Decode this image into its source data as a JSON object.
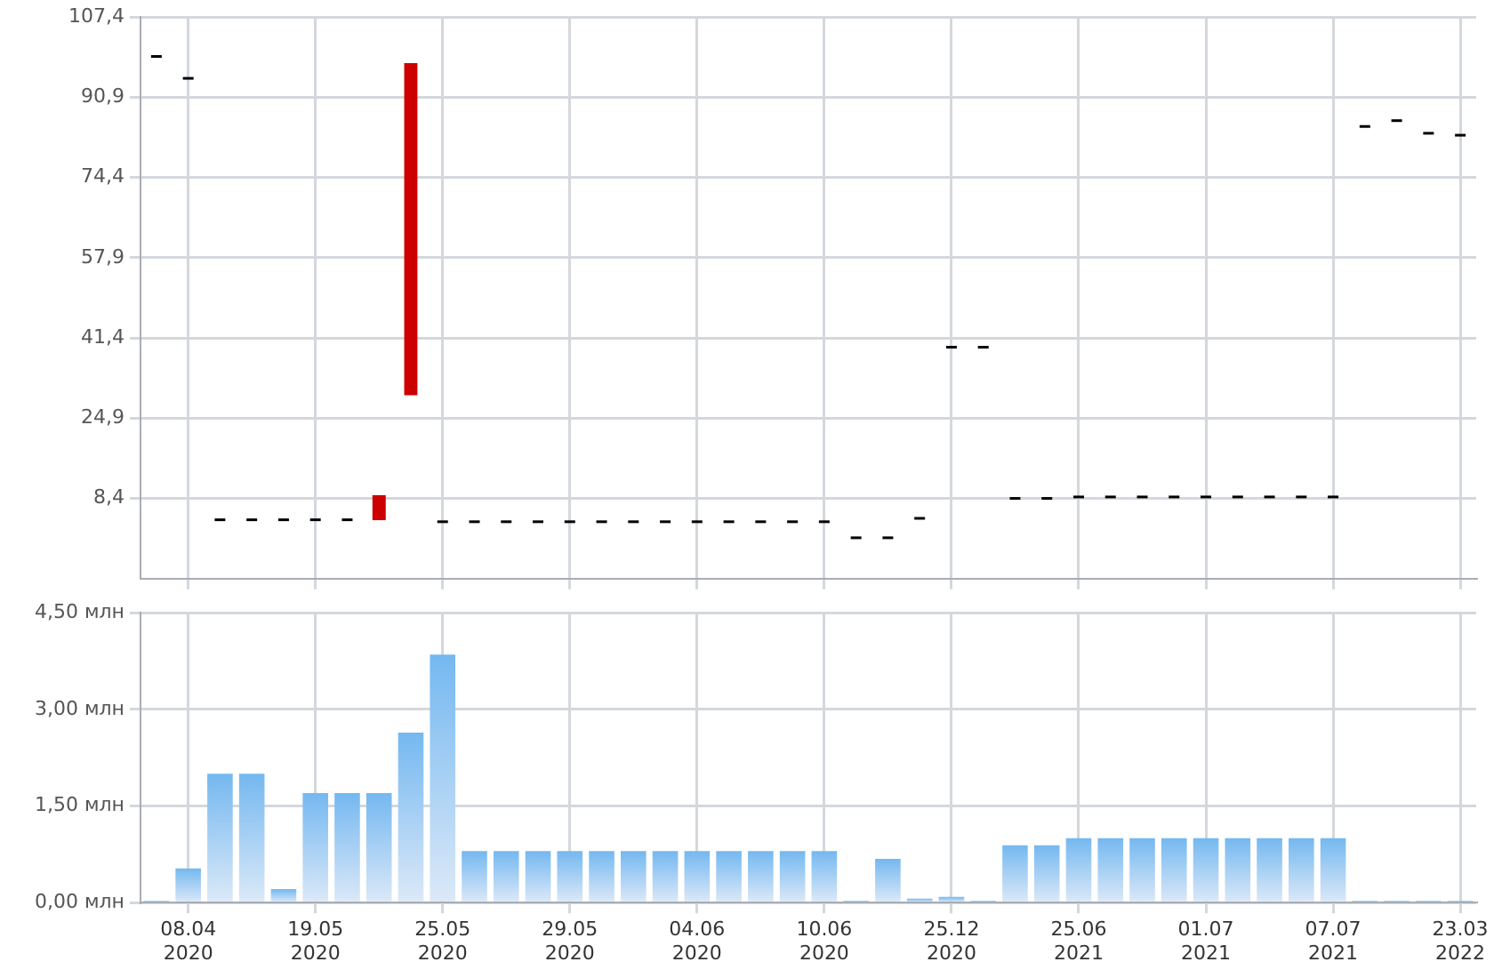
{
  "chart_data": [
    {
      "type": "candlestick",
      "categories": [
        null,
        null,
        null,
        null,
        null,
        null,
        null,
        null,
        null,
        null,
        null,
        null,
        null,
        null,
        null,
        null,
        null,
        null,
        null,
        null,
        null,
        null,
        null,
        null,
        null,
        null,
        null,
        null,
        null,
        null,
        null,
        null,
        null,
        null,
        null,
        null,
        null,
        null,
        null,
        null,
        null,
        null
      ],
      "ohlc": [
        [
          99.3,
          99.3,
          99.3,
          99.3
        ],
        [
          94.8,
          94.8,
          94.8,
          94.8
        ],
        [
          4.0,
          4.0,
          4.0,
          4.0
        ],
        [
          4.0,
          4.0,
          4.0,
          4.0
        ],
        [
          4.0,
          4.0,
          4.0,
          4.0
        ],
        [
          4.0,
          4.0,
          4.0,
          4.0
        ],
        [
          4.0,
          4.0,
          4.0,
          4.0
        ],
        [
          9.0,
          9.0,
          4.0,
          4.0
        ],
        [
          97.8,
          97.8,
          29.7,
          29.7
        ],
        [
          3.6,
          3.6,
          3.6,
          3.6
        ],
        [
          3.6,
          3.6,
          3.6,
          3.6
        ],
        [
          3.6,
          3.6,
          3.6,
          3.6
        ],
        [
          3.6,
          3.6,
          3.6,
          3.6
        ],
        [
          3.6,
          3.6,
          3.6,
          3.6
        ],
        [
          3.6,
          3.6,
          3.6,
          3.6
        ],
        [
          3.6,
          3.6,
          3.6,
          3.6
        ],
        [
          3.6,
          3.6,
          3.6,
          3.6
        ],
        [
          3.6,
          3.6,
          3.6,
          3.6
        ],
        [
          3.6,
          3.6,
          3.6,
          3.6
        ],
        [
          3.6,
          3.6,
          3.6,
          3.6
        ],
        [
          3.6,
          3.6,
          3.6,
          3.6
        ],
        [
          3.6,
          3.6,
          3.6,
          3.6
        ],
        [
          0.3,
          0.3,
          0.3,
          0.3
        ],
        [
          0.3,
          0.3,
          0.3,
          0.3
        ],
        [
          4.3,
          4.3,
          4.3,
          4.3
        ],
        [
          39.5,
          39.5,
          39.5,
          39.5
        ],
        [
          39.5,
          39.5,
          39.5,
          39.5
        ],
        [
          8.4,
          8.4,
          8.4,
          8.4
        ],
        [
          8.4,
          8.4,
          8.4,
          8.4
        ],
        [
          8.7,
          8.7,
          8.7,
          8.7
        ],
        [
          8.7,
          8.7,
          8.7,
          8.7
        ],
        [
          8.7,
          8.7,
          8.7,
          8.7
        ],
        [
          8.7,
          8.7,
          8.7,
          8.7
        ],
        [
          8.7,
          8.7,
          8.7,
          8.7
        ],
        [
          8.7,
          8.7,
          8.7,
          8.7
        ],
        [
          8.7,
          8.7,
          8.7,
          8.7
        ],
        [
          8.7,
          8.7,
          8.7,
          8.7
        ],
        [
          8.7,
          8.7,
          8.7,
          8.7
        ],
        [
          84.9,
          84.9,
          84.9,
          84.9
        ],
        [
          86.1,
          86.1,
          86.1,
          86.1
        ],
        [
          83.5,
          83.5,
          83.5,
          83.5
        ],
        [
          83.1,
          83.1,
          83.1,
          83.1
        ]
      ],
      "colors": [
        "#000000",
        "#000000",
        "#000000",
        "#000000",
        "#000000",
        "#000000",
        "#000000",
        "#cc0000",
        "#cc0000",
        "#000000",
        "#000000",
        "#000000",
        "#000000",
        "#000000",
        "#000000",
        "#000000",
        "#000000",
        "#000000",
        "#000000",
        "#000000",
        "#000000",
        "#000000",
        "#000000",
        "#000000",
        "#000000",
        "#000000",
        "#000000",
        "#000000",
        "#000000",
        "#000000",
        "#000000",
        "#000000",
        "#000000",
        "#000000",
        "#000000",
        "#000000",
        "#000000",
        "#000000",
        "#000000",
        "#000000",
        "#000000",
        "#000000"
      ],
      "ylim": [
        -8.1,
        107.4
      ],
      "yticks": [
        {
          "value": 8.4,
          "label": "8,4"
        },
        {
          "value": 24.9,
          "label": "24,9"
        },
        {
          "value": 41.4,
          "label": "41,4"
        },
        {
          "value": 57.9,
          "label": "57,9"
        },
        {
          "value": 74.4,
          "label": "74,4"
        },
        {
          "value": 90.9,
          "label": "90,9"
        },
        {
          "value": 107.4,
          "label": "107,4"
        }
      ],
      "grid": true,
      "tick_labels": "y"
    },
    {
      "type": "bar",
      "categories": [
        null,
        "08.04 2020",
        null,
        null,
        null,
        "19.05 2020",
        null,
        null,
        null,
        "25.05 2020",
        null,
        null,
        null,
        "29.05 2020",
        null,
        null,
        null,
        "04.06 2020",
        null,
        null,
        null,
        "10.06 2020",
        null,
        null,
        null,
        "25.12 2020",
        null,
        null,
        null,
        "25.06 2021",
        null,
        null,
        null,
        "01.07 2021",
        null,
        null,
        null,
        "07.07 2021",
        null,
        null,
        null,
        "23.03 2022"
      ],
      "values": [
        0.03,
        0.53,
        2.0,
        2.0,
        0.21,
        1.7,
        1.7,
        1.7,
        2.64,
        3.85,
        0.8,
        0.8,
        0.8,
        0.8,
        0.8,
        0.8,
        0.8,
        0.8,
        0.8,
        0.8,
        0.8,
        0.8,
        0.03,
        0.68,
        0.06,
        0.09,
        0.03,
        0.89,
        0.89,
        1.0,
        1.0,
        1.0,
        1.0,
        1.0,
        1.0,
        1.0,
        1.0,
        1.0,
        0.03,
        0.03,
        0.03,
        0.03
      ],
      "color": "#74b8f0",
      "ylim": [
        0,
        4.5
      ],
      "yticks": [
        {
          "value": 0,
          "label": "0,00 млн"
        },
        {
          "value": 1.5,
          "label": "1,50 млн"
        },
        {
          "value": 3,
          "label": "3,00 млн"
        },
        {
          "value": 4.5,
          "label": "4,50 млн"
        }
      ],
      "grid": true
    }
  ]
}
